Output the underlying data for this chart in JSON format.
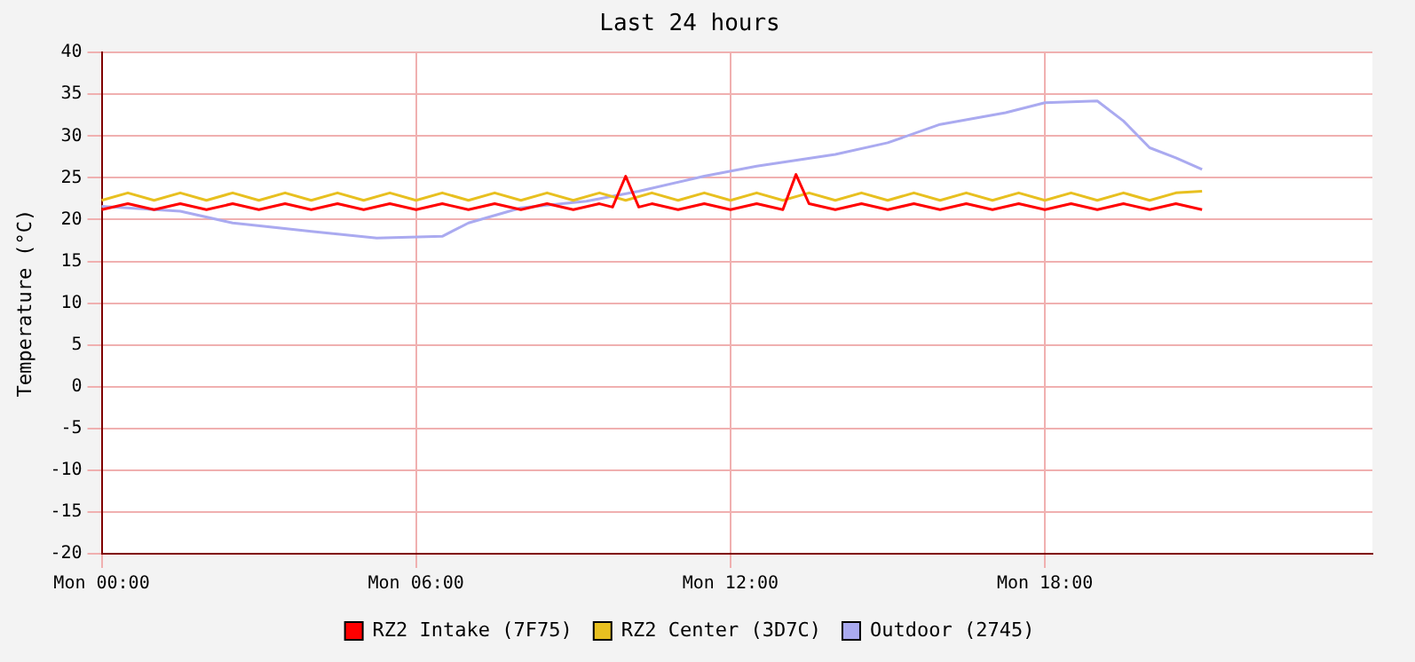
{
  "chart_data": {
    "type": "line",
    "title": "Last 24 hours",
    "ylabel": "Temperature (°C)",
    "categories": [
      "Mon 00:00",
      null,
      null,
      null,
      null,
      null,
      null,
      null,
      null,
      null,
      null,
      null,
      null,
      null,
      null,
      null,
      null,
      null,
      null,
      null,
      null,
      null,
      null,
      null,
      "Mon 06:00",
      null,
      null,
      null,
      null,
      null,
      null,
      null,
      null,
      null,
      null,
      null,
      null,
      null,
      null,
      null,
      null,
      null,
      null,
      null,
      null,
      null,
      null,
      null,
      "Mon 12:00",
      null,
      null,
      null,
      null,
      null,
      null,
      null,
      null,
      null,
      null,
      null,
      null,
      null,
      null,
      null,
      null,
      null,
      null,
      null,
      null,
      null,
      null,
      null,
      "Mon 18:00",
      null,
      null,
      null,
      null,
      null,
      null,
      null,
      null,
      null,
      null,
      null,
      null,
      null,
      null,
      null,
      null,
      null,
      null,
      null,
      null,
      null,
      null,
      null,
      null,
      null
    ],
    "ylim": [
      -20,
      40
    ],
    "yticks": [
      -20,
      -15,
      -10,
      -5,
      0,
      5,
      10,
      15,
      20,
      25,
      30,
      35,
      40
    ],
    "grid": true,
    "legend": "bottom",
    "marker": "none",
    "line_style": "solid",
    "series": [
      {
        "name": "RZ2 Intake (7F75)",
        "color": "#ff0000",
        "values": [
          21.2,
          null,
          21.9,
          null,
          21.2,
          null,
          21.9,
          null,
          21.2,
          null,
          21.9,
          null,
          21.2,
          null,
          21.9,
          null,
          21.2,
          null,
          21.9,
          null,
          21.2,
          null,
          21.9,
          null,
          21.2,
          null,
          21.9,
          null,
          21.2,
          null,
          21.9,
          null,
          21.2,
          null,
          21.9,
          null,
          21.2,
          null,
          21.9,
          21.5,
          25.2,
          21.5,
          21.9,
          null,
          21.2,
          null,
          21.9,
          null,
          21.2,
          null,
          21.9,
          null,
          21.2,
          25.4,
          21.9,
          null,
          21.2,
          null,
          21.9,
          null,
          21.2,
          null,
          21.9,
          null,
          21.2,
          null,
          21.9,
          null,
          21.2,
          null,
          21.9,
          null,
          21.2,
          null,
          21.9,
          null,
          21.2,
          null,
          21.9,
          null,
          21.2,
          null,
          21.9,
          null,
          21.2,
          null,
          null,
          null,
          null,
          null,
          null,
          null,
          null,
          null,
          null,
          null,
          null,
          null
        ]
      },
      {
        "name": "RZ2 Center (3D7C)",
        "color": "#e8c020",
        "values": [
          22.3,
          null,
          23.2,
          null,
          22.3,
          null,
          23.2,
          null,
          22.3,
          null,
          23.2,
          null,
          22.3,
          null,
          23.2,
          null,
          22.3,
          null,
          23.2,
          null,
          22.3,
          null,
          23.2,
          null,
          22.3,
          null,
          23.2,
          null,
          22.3,
          null,
          23.2,
          null,
          22.3,
          null,
          23.2,
          null,
          22.3,
          null,
          23.2,
          null,
          22.3,
          null,
          23.2,
          null,
          22.3,
          null,
          23.2,
          null,
          22.3,
          null,
          23.2,
          null,
          22.3,
          null,
          23.2,
          null,
          22.3,
          null,
          23.2,
          null,
          22.3,
          null,
          23.2,
          null,
          22.3,
          null,
          23.2,
          null,
          22.3,
          null,
          23.2,
          null,
          22.3,
          null,
          23.2,
          null,
          22.3,
          null,
          23.2,
          null,
          22.3,
          null,
          23.2,
          null,
          23.4,
          null,
          null,
          null,
          null,
          null,
          null,
          null,
          null,
          null,
          null,
          null,
          null,
          null
        ]
      },
      {
        "name": "Outdoor (2745)",
        "color": "#aaaaf0",
        "values": [
          21.6,
          null,
          null,
          null,
          null,
          null,
          21,
          null,
          null,
          null,
          19.6,
          null,
          null,
          null,
          null,
          null,
          18.6,
          null,
          null,
          null,
          null,
          17.8,
          null,
          null,
          null,
          null,
          18,
          null,
          19.6,
          null,
          null,
          null,
          21.4,
          null,
          null,
          null,
          null,
          22.2,
          null,
          null,
          null,
          23.4,
          null,
          null,
          null,
          null,
          25.2,
          null,
          null,
          null,
          26.4,
          null,
          null,
          null,
          null,
          null,
          27.8,
          null,
          null,
          null,
          29.2,
          null,
          null,
          null,
          31.4,
          null,
          null,
          null,
          null,
          32.8,
          null,
          null,
          34,
          null,
          null,
          null,
          34.2,
          null,
          31.8,
          null,
          28.6,
          null,
          27.4,
          null,
          26,
          null,
          null,
          null,
          null,
          null,
          null,
          null,
          null,
          null,
          null,
          null,
          null,
          null
        ]
      }
    ]
  }
}
